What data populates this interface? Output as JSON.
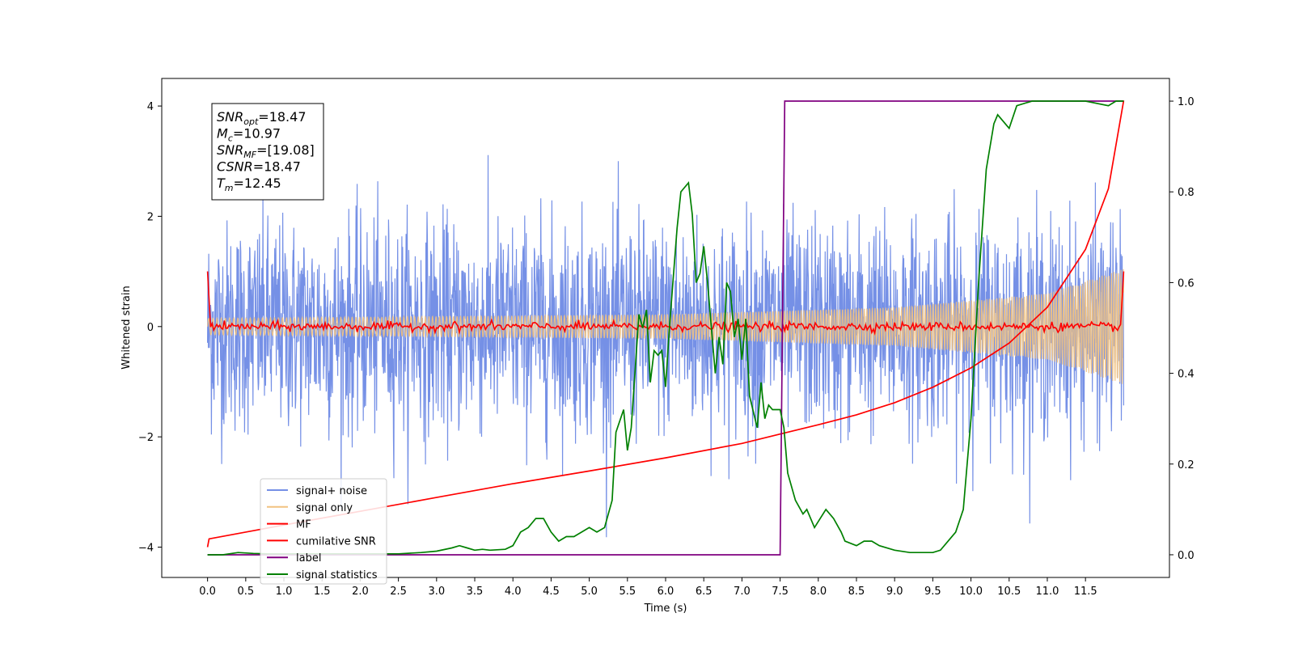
{
  "chart_data": {
    "type": "line",
    "title": "",
    "xlabel": "Time (s)",
    "ylabel": "Whitened strain",
    "ylabel_right": "",
    "xlim": [
      -0.6,
      12.6
    ],
    "ylim": [
      -4.55,
      4.5
    ],
    "ylim_right": [
      -0.05,
      1.05
    ],
    "x_ticks": [
      "0.0",
      "0.5",
      "1.0",
      "1.5",
      "2.0",
      "2.5",
      "3.0",
      "3.5",
      "4.0",
      "4.5",
      "5.0",
      "5.5",
      "6.0",
      "6.5",
      "7.0",
      "7.5",
      "8.0",
      "8.5",
      "9.0",
      "9.5",
      "10.0",
      "10.5",
      "11.0",
      "11.5"
    ],
    "y_ticks": [
      "4",
      "2",
      "0",
      "−2",
      "−4"
    ],
    "y_ticks_right": [
      "1.0",
      "0.8",
      "0.6",
      "0.4",
      "0.2",
      "0.0"
    ],
    "grid": false,
    "legend_position": "lower-left",
    "legend": [
      "signal+ noise",
      "signal only",
      "MF",
      "cumilative SNR",
      "label",
      "signal statistics"
    ],
    "info_box": {
      "lines": [
        {
          "sym": "SNR",
          "sub": "opt",
          "value": "=18.47"
        },
        {
          "sym": "M",
          "sub": "c",
          "value": "=10.97"
        },
        {
          "sym": "SNR",
          "sub": "MF",
          "value": "=[19.08]"
        },
        {
          "sym": "CSNR",
          "sub": "",
          "value": "=18.47"
        },
        {
          "sym": "T",
          "sub": "m",
          "value": "=12.45"
        }
      ]
    },
    "series": [
      {
        "name": "signal+ noise",
        "color": "#7590e6",
        "axis": "left",
        "description_stats": {
          "x_start": 0.0,
          "x_end": 12.0,
          "envelope": 2.3,
          "peak_min": -4.15,
          "peak_max": 4.1
        }
      },
      {
        "name": "signal only",
        "color": "#f2c280",
        "axis": "left",
        "envelope": [
          {
            "x": 0.0,
            "amp": 0.15
          },
          {
            "x": 6.0,
            "amp": 0.22
          },
          {
            "x": 9.0,
            "amp": 0.35
          },
          {
            "x": 11.0,
            "amp": 0.6
          },
          {
            "x": 12.0,
            "amp": 1.05
          }
        ]
      },
      {
        "name": "MF",
        "color": "#ff0000",
        "axis": "left",
        "points": [
          [
            0.0,
            1.0
          ],
          [
            0.05,
            0.0
          ],
          [
            2.0,
            0.0
          ],
          [
            4.0,
            0.0
          ],
          [
            6.0,
            0.0
          ],
          [
            8.0,
            0.0
          ],
          [
            10.0,
            0.0
          ],
          [
            11.95,
            0.0
          ],
          [
            12.0,
            1.0
          ]
        ]
      },
      {
        "name": "cumilative SNR",
        "color": "#ff0000",
        "axis": "left",
        "points": [
          [
            0.0,
            -4.0
          ],
          [
            0.02,
            -3.85
          ],
          [
            1.0,
            -3.6
          ],
          [
            2.0,
            -3.35
          ],
          [
            3.0,
            -3.1
          ],
          [
            4.0,
            -2.85
          ],
          [
            5.0,
            -2.62
          ],
          [
            6.0,
            -2.38
          ],
          [
            7.0,
            -2.12
          ],
          [
            7.5,
            -1.95
          ],
          [
            8.0,
            -1.78
          ],
          [
            8.5,
            -1.6
          ],
          [
            9.0,
            -1.38
          ],
          [
            9.5,
            -1.1
          ],
          [
            10.0,
            -0.75
          ],
          [
            10.5,
            -0.3
          ],
          [
            11.0,
            0.35
          ],
          [
            11.5,
            1.4
          ],
          [
            11.8,
            2.5
          ],
          [
            12.0,
            4.1
          ]
        ]
      },
      {
        "name": "label",
        "color": "#800080",
        "axis": "right",
        "points": [
          [
            0.0,
            0.0
          ],
          [
            7.5,
            0.0
          ],
          [
            7.56,
            1.0
          ],
          [
            12.0,
            1.0
          ]
        ]
      },
      {
        "name": "signal statistics",
        "color": "#008000",
        "axis": "right",
        "points": [
          [
            0.0,
            0.0
          ],
          [
            0.2,
            0.0
          ],
          [
            0.4,
            0.005
          ],
          [
            0.6,
            0.003
          ],
          [
            0.8,
            0.002
          ],
          [
            1.0,
            0.002
          ],
          [
            1.5,
            0.002
          ],
          [
            2.0,
            0.002
          ],
          [
            2.5,
            0.002
          ],
          [
            2.8,
            0.005
          ],
          [
            3.0,
            0.008
          ],
          [
            3.2,
            0.015
          ],
          [
            3.3,
            0.02
          ],
          [
            3.4,
            0.015
          ],
          [
            3.5,
            0.01
          ],
          [
            3.6,
            0.012
          ],
          [
            3.7,
            0.01
          ],
          [
            3.9,
            0.012
          ],
          [
            4.0,
            0.02
          ],
          [
            4.1,
            0.05
          ],
          [
            4.2,
            0.06
          ],
          [
            4.3,
            0.08
          ],
          [
            4.4,
            0.08
          ],
          [
            4.5,
            0.05
          ],
          [
            4.6,
            0.03
          ],
          [
            4.7,
            0.04
          ],
          [
            4.8,
            0.04
          ],
          [
            4.9,
            0.05
          ],
          [
            5.0,
            0.06
          ],
          [
            5.1,
            0.05
          ],
          [
            5.2,
            0.06
          ],
          [
            5.3,
            0.12
          ],
          [
            5.35,
            0.27
          ],
          [
            5.45,
            0.32
          ],
          [
            5.5,
            0.23
          ],
          [
            5.55,
            0.28
          ],
          [
            5.65,
            0.53
          ],
          [
            5.7,
            0.5
          ],
          [
            5.75,
            0.54
          ],
          [
            5.8,
            0.38
          ],
          [
            5.85,
            0.45
          ],
          [
            5.9,
            0.44
          ],
          [
            5.95,
            0.45
          ],
          [
            6.0,
            0.37
          ],
          [
            6.05,
            0.5
          ],
          [
            6.15,
            0.72
          ],
          [
            6.2,
            0.8
          ],
          [
            6.3,
            0.82
          ],
          [
            6.35,
            0.75
          ],
          [
            6.4,
            0.6
          ],
          [
            6.45,
            0.62
          ],
          [
            6.5,
            0.68
          ],
          [
            6.55,
            0.6
          ],
          [
            6.6,
            0.5
          ],
          [
            6.65,
            0.4
          ],
          [
            6.7,
            0.48
          ],
          [
            6.75,
            0.42
          ],
          [
            6.8,
            0.6
          ],
          [
            6.85,
            0.58
          ],
          [
            6.9,
            0.48
          ],
          [
            6.95,
            0.52
          ],
          [
            7.0,
            0.43
          ],
          [
            7.05,
            0.52
          ],
          [
            7.1,
            0.35
          ],
          [
            7.2,
            0.28
          ],
          [
            7.25,
            0.38
          ],
          [
            7.3,
            0.3
          ],
          [
            7.35,
            0.33
          ],
          [
            7.4,
            0.32
          ],
          [
            7.5,
            0.32
          ],
          [
            7.55,
            0.28
          ],
          [
            7.6,
            0.18
          ],
          [
            7.7,
            0.12
          ],
          [
            7.8,
            0.09
          ],
          [
            7.85,
            0.1
          ],
          [
            7.95,
            0.06
          ],
          [
            8.1,
            0.1
          ],
          [
            8.2,
            0.08
          ],
          [
            8.3,
            0.05
          ],
          [
            8.35,
            0.03
          ],
          [
            8.5,
            0.02
          ],
          [
            8.6,
            0.03
          ],
          [
            8.7,
            0.03
          ],
          [
            8.8,
            0.02
          ],
          [
            9.0,
            0.01
          ],
          [
            9.2,
            0.005
          ],
          [
            9.5,
            0.005
          ],
          [
            9.6,
            0.01
          ],
          [
            9.7,
            0.03
          ],
          [
            9.8,
            0.05
          ],
          [
            9.9,
            0.1
          ],
          [
            10.0,
            0.3
          ],
          [
            10.1,
            0.6
          ],
          [
            10.2,
            0.85
          ],
          [
            10.3,
            0.95
          ],
          [
            10.35,
            0.97
          ],
          [
            10.5,
            0.94
          ],
          [
            10.6,
            0.99
          ],
          [
            10.8,
            1.0
          ],
          [
            11.0,
            1.0
          ],
          [
            11.5,
            1.0
          ],
          [
            11.8,
            0.99
          ],
          [
            11.9,
            1.0
          ],
          [
            12.0,
            1.0
          ]
        ]
      }
    ]
  }
}
